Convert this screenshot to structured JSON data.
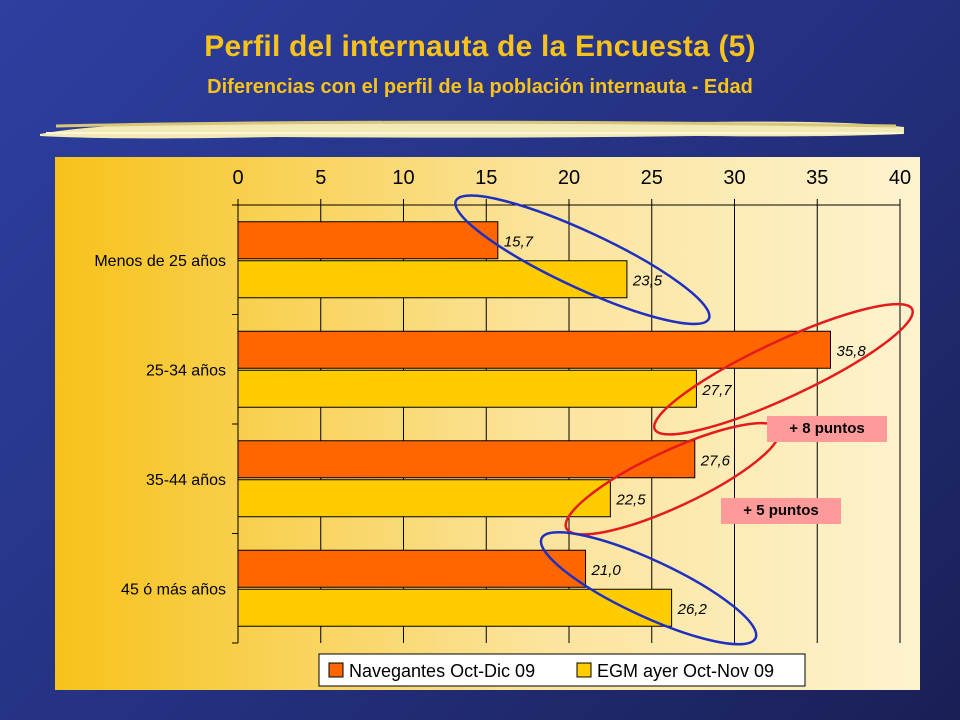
{
  "slide": {
    "title": "Perfil del internauta de la Encuesta (5)",
    "subtitle": "Diferencias con el perfil de la población internauta - Edad"
  },
  "colors": {
    "background": "#2a3590",
    "title": "#f7c21a",
    "series1": "#ff6600",
    "series2": "#ffcc00",
    "ellipse_blue": "#1f2fbf",
    "ellipse_red": "#e51b1b",
    "callout": "#ff9a9a"
  },
  "chart_data": {
    "type": "bar",
    "orientation": "horizontal",
    "categories": [
      "Menos de 25 años",
      "25-34 años",
      "35-44 años",
      "45 ó más años"
    ],
    "series": [
      {
        "name": "Navegantes Oct-Dic 09",
        "values": [
          15.7,
          35.8,
          27.6,
          21.0
        ],
        "labels": [
          "15,7",
          "35,8",
          "27,6",
          "21,0"
        ],
        "color": "#ff6600"
      },
      {
        "name": "EGM ayer Oct-Nov 09",
        "values": [
          23.5,
          27.7,
          22.5,
          26.2
        ],
        "labels": [
          "23,5",
          "27,7",
          "22,5",
          "26,2"
        ],
        "color": "#ffcc00"
      }
    ],
    "xlim": [
      0,
      40
    ],
    "xticks": [
      0,
      5,
      10,
      15,
      20,
      25,
      30,
      35,
      40
    ],
    "axis_position": "top",
    "grid": true,
    "legend_position": "bottom",
    "annotations": [
      {
        "text": "+ 8 puntos",
        "category": "25-34 años"
      },
      {
        "text": "+ 5 puntos",
        "category": "35-44 años"
      }
    ],
    "highlights": [
      {
        "category": "Menos de 25 años",
        "color": "#1f2fbf"
      },
      {
        "category": "25-34 años",
        "color": "#e51b1b"
      },
      {
        "category": "35-44 años",
        "color": "#e51b1b"
      },
      {
        "category": "45 ó más años",
        "color": "#1f2fbf"
      }
    ]
  }
}
